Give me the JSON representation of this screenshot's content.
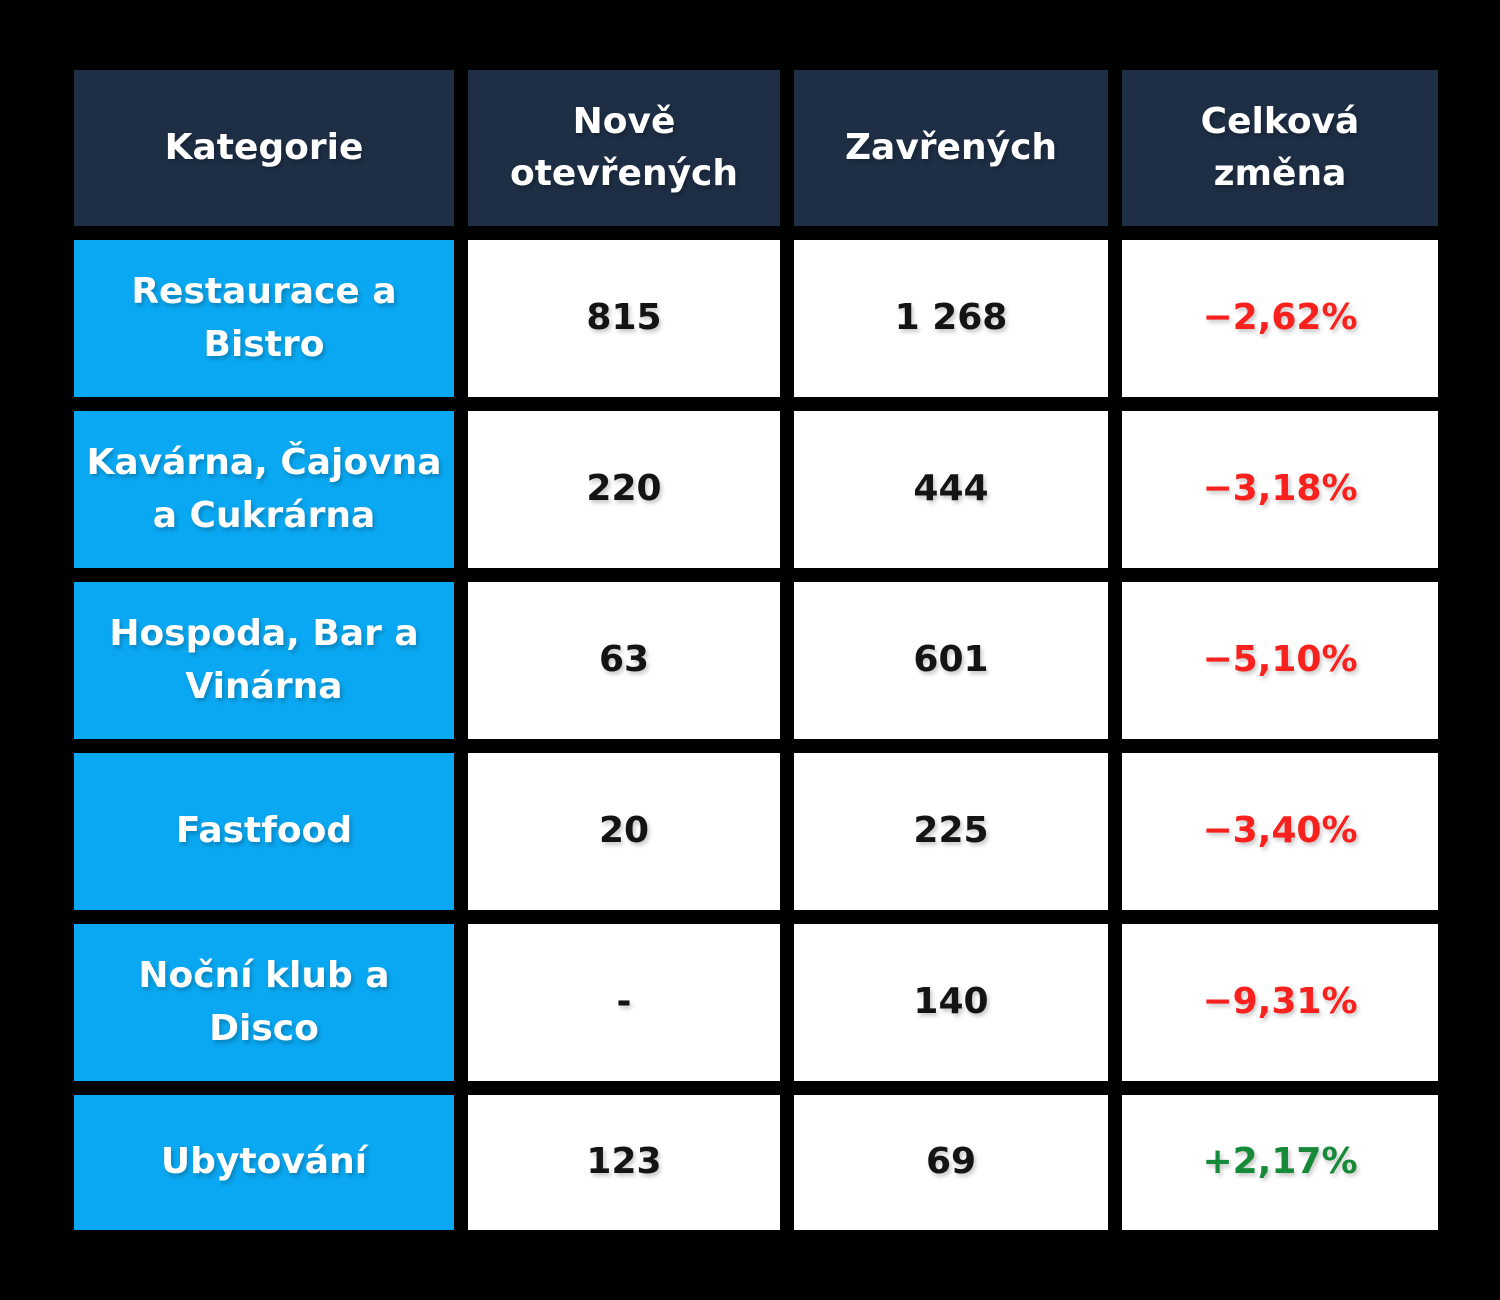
{
  "colors": {
    "page_bg": "#000000",
    "header_bg": "#1e2e45",
    "header_text": "#ffffff",
    "category_bg": "#0aa8f2",
    "category_text": "#ffffff",
    "cell_bg": "#ffffff",
    "value_text": "#141414",
    "negative": "#f8211d",
    "positive": "#168a38"
  },
  "chart_data": {
    "type": "table",
    "columns": [
      "Kategorie",
      "Nově\notevřených",
      "Zavřených",
      "Celková\nzměna"
    ],
    "rows": [
      {
        "category": "Restaurace a\nBistro",
        "opened": "815",
        "closed": "1 268",
        "change": "−2,62%",
        "trend": "negative"
      },
      {
        "category": "Kavárna, Čajovna\na Cukrárna",
        "opened": "220",
        "closed": "444",
        "change": "−3,18%",
        "trend": "negative"
      },
      {
        "category": "Hospoda, Bar a\nVinárna",
        "opened": "63",
        "closed": "601",
        "change": "−5,10%",
        "trend": "negative"
      },
      {
        "category": "Fastfood",
        "opened": "20",
        "closed": "225",
        "change": "−3,40%",
        "trend": "negative"
      },
      {
        "category": "Noční klub a\nDisco",
        "opened": "-",
        "closed": "140",
        "change": "−9,31%",
        "trend": "negative"
      },
      {
        "category": "Ubytování",
        "opened": "123",
        "closed": "69",
        "change": "+2,17%",
        "trend": "positive"
      }
    ]
  }
}
